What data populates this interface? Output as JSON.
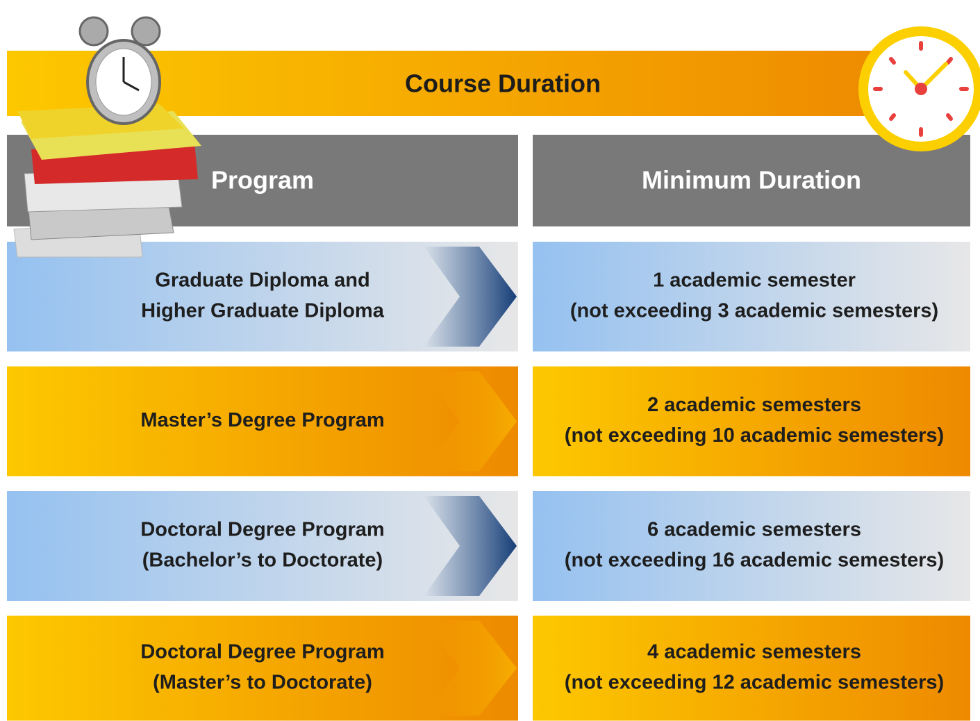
{
  "header": {
    "title": "Course Duration"
  },
  "table": {
    "columns": [
      "Program",
      "Minimum Duration"
    ],
    "rows": [
      {
        "program": [
          "Graduate Diploma and",
          "Higher Graduate Diploma"
        ],
        "duration": [
          "1 academic semester",
          "(not exceeding 3 academic semesters)"
        ]
      },
      {
        "program": [
          "Master’s Degree Program"
        ],
        "duration": [
          "2 academic semesters",
          "(not exceeding 10 academic semesters)"
        ]
      },
      {
        "program": [
          "Doctoral Degree Program",
          "(Bachelor’s to Doctorate)"
        ],
        "duration": [
          "6 academic semesters",
          "(not exceeding 16 academic semesters)"
        ]
      },
      {
        "program": [
          "Doctoral Degree Program",
          "(Master’s to Doctorate)"
        ],
        "duration": [
          "4 academic semesters",
          "(not exceeding 12 academic semesters)"
        ]
      }
    ]
  }
}
